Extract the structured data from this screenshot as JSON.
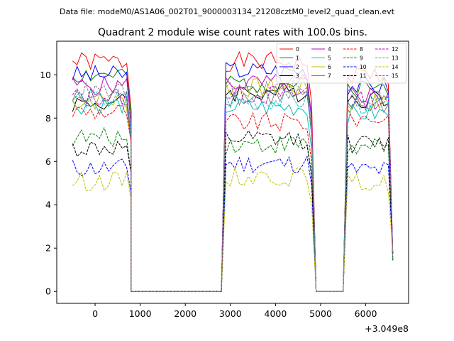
{
  "chart_data": {
    "type": "line",
    "suptitle": "Data file: modeM0/AS1A06_002T01_9000003134_21208cztM0_level2_quad_clean.evt",
    "title": "Quadrant 2 module wise count rates with 100.0s bins.",
    "xlabel": "",
    "ylabel": "",
    "x_offset_label": "+3.049e8",
    "xlim": [
      -850,
      6950
    ],
    "ylim": [
      -0.55,
      11.55
    ],
    "xticks": [
      0,
      1000,
      2000,
      3000,
      4000,
      5000,
      6000
    ],
    "xtick_labels": [
      "0",
      "1000",
      "2000",
      "3000",
      "4000",
      "5000",
      "6000"
    ],
    "yticks": [
      0,
      2,
      4,
      6,
      8,
      10
    ],
    "ytick_labels": [
      "0",
      "2",
      "4",
      "6",
      "8",
      "10"
    ],
    "grid": false,
    "legend_position": "top-right",
    "segments": [
      {
        "start": -500,
        "count": 14,
        "step": 100
      },
      {
        "start": 800,
        "count": 21,
        "step": 100
      },
      {
        "start": 2900,
        "count": 20,
        "step": 100
      },
      {
        "start": 4900,
        "count": 7,
        "step": 100
      },
      {
        "start": 5600,
        "count": 11,
        "step": 100
      }
    ],
    "series": [
      {
        "name": "0",
        "color": "#ff0000",
        "dash": "solid",
        "levels": [
          10.6,
          10.6,
          10.0
        ],
        "noise_seed": 1
      },
      {
        "name": "1",
        "color": "#008000",
        "dash": "solid",
        "levels": [
          10.0,
          9.6,
          9.4
        ],
        "noise_seed": 2
      },
      {
        "name": "2",
        "color": "#0000ff",
        "dash": "solid",
        "levels": [
          10.0,
          10.2,
          9.5
        ],
        "noise_seed": 3
      },
      {
        "name": "3",
        "color": "#000000",
        "dash": "solid",
        "levels": [
          8.7,
          9.2,
          8.9
        ],
        "noise_seed": 4
      },
      {
        "name": "4",
        "color": "#bf00bf",
        "dash": "solid",
        "levels": [
          9.5,
          9.6,
          9.1
        ],
        "noise_seed": 5
      },
      {
        "name": "5",
        "color": "#00bfbf",
        "dash": "solid",
        "levels": [
          8.6,
          8.5,
          8.2
        ],
        "noise_seed": 6
      },
      {
        "name": "6",
        "color": "#bfbf00",
        "dash": "solid",
        "levels": [
          8.8,
          9.4,
          8.7
        ],
        "noise_seed": 7
      },
      {
        "name": "7",
        "color": "#808080",
        "dash": "solid",
        "levels": [
          8.9,
          9.0,
          8.6
        ],
        "noise_seed": 8
      },
      {
        "name": "8",
        "color": "#ff0000",
        "dash": "dashed",
        "levels": [
          8.3,
          7.8,
          8.0
        ],
        "noise_seed": 9
      },
      {
        "name": "9",
        "color": "#008000",
        "dash": "dashed",
        "levels": [
          7.1,
          6.8,
          6.6
        ],
        "noise_seed": 10
      },
      {
        "name": "10",
        "color": "#0000ff",
        "dash": "dashed",
        "levels": [
          5.7,
          5.9,
          5.6
        ],
        "noise_seed": 11
      },
      {
        "name": "11",
        "color": "#000000",
        "dash": "dashed",
        "levels": [
          6.6,
          7.0,
          6.8
        ],
        "noise_seed": 12
      },
      {
        "name": "12",
        "color": "#bf00bf",
        "dash": "dashed",
        "levels": [
          9.0,
          9.1,
          8.8
        ],
        "noise_seed": 13
      },
      {
        "name": "13",
        "color": "#00bfbf",
        "dash": "dashed",
        "levels": [
          8.9,
          8.8,
          8.6
        ],
        "noise_seed": 14
      },
      {
        "name": "14",
        "color": "#bfbf00",
        "dash": "dashed",
        "levels": [
          5.1,
          5.3,
          5.0
        ],
        "noise_seed": 15
      },
      {
        "name": "15",
        "color": "#808080",
        "dash": "dashed",
        "levels": [
          9.2,
          9.3,
          8.9
        ],
        "noise_seed": 16
      }
    ]
  }
}
